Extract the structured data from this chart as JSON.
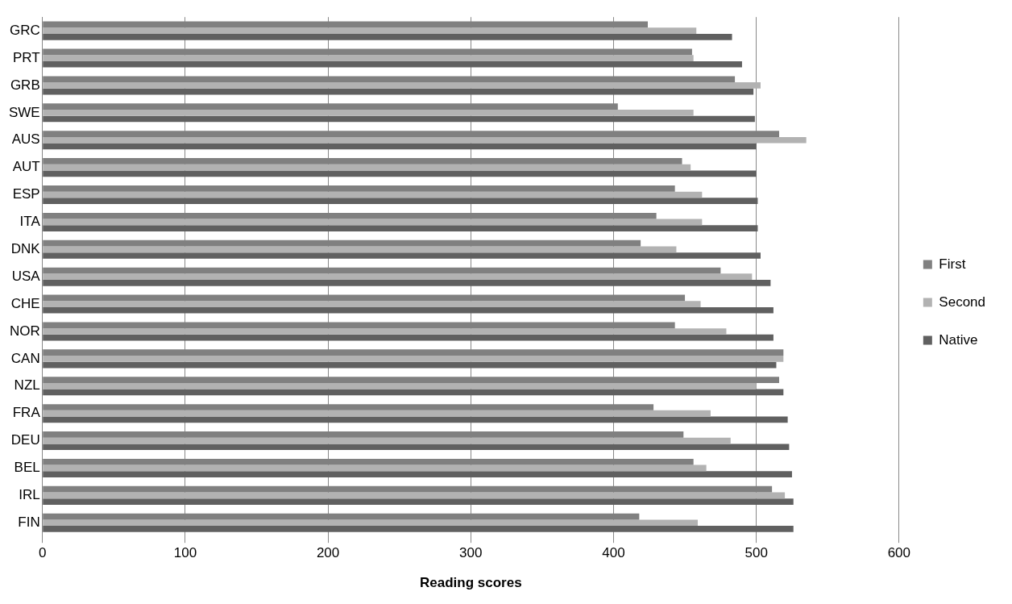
{
  "chart_data": {
    "type": "bar",
    "orientation": "horizontal",
    "xlabel": "Reading scores",
    "categories": [
      "GRC",
      "PRT",
      "GRB",
      "SWE",
      "AUS",
      "AUT",
      "ESP",
      "ITA",
      "DNK",
      "USA",
      "CHE",
      "NOR",
      "CAN",
      "NZL",
      "FRA",
      "DEU",
      "BEL",
      "IRL",
      "FIN"
    ],
    "series": [
      {
        "name": "First",
        "color": "#808080",
        "values": [
          424,
          455,
          485,
          403,
          516,
          448,
          443,
          430,
          419,
          475,
          450,
          443,
          519,
          516,
          428,
          449,
          456,
          511,
          418
        ]
      },
      {
        "name": "Second",
        "color": "#b2b2b2",
        "values": [
          458,
          456,
          503,
          456,
          535,
          454,
          462,
          462,
          444,
          497,
          461,
          479,
          519,
          500,
          468,
          482,
          465,
          520,
          459
        ]
      },
      {
        "name": "Native",
        "color": "#606060",
        "values": [
          483,
          490,
          498,
          499,
          500,
          500,
          501,
          501,
          503,
          510,
          512,
          512,
          514,
          519,
          522,
          523,
          525,
          526,
          526
        ]
      }
    ],
    "xlim": [
      0,
      600
    ],
    "xticks": [
      0,
      100,
      200,
      300,
      400,
      500,
      600
    ],
    "grid": "x",
    "legend": "right"
  }
}
